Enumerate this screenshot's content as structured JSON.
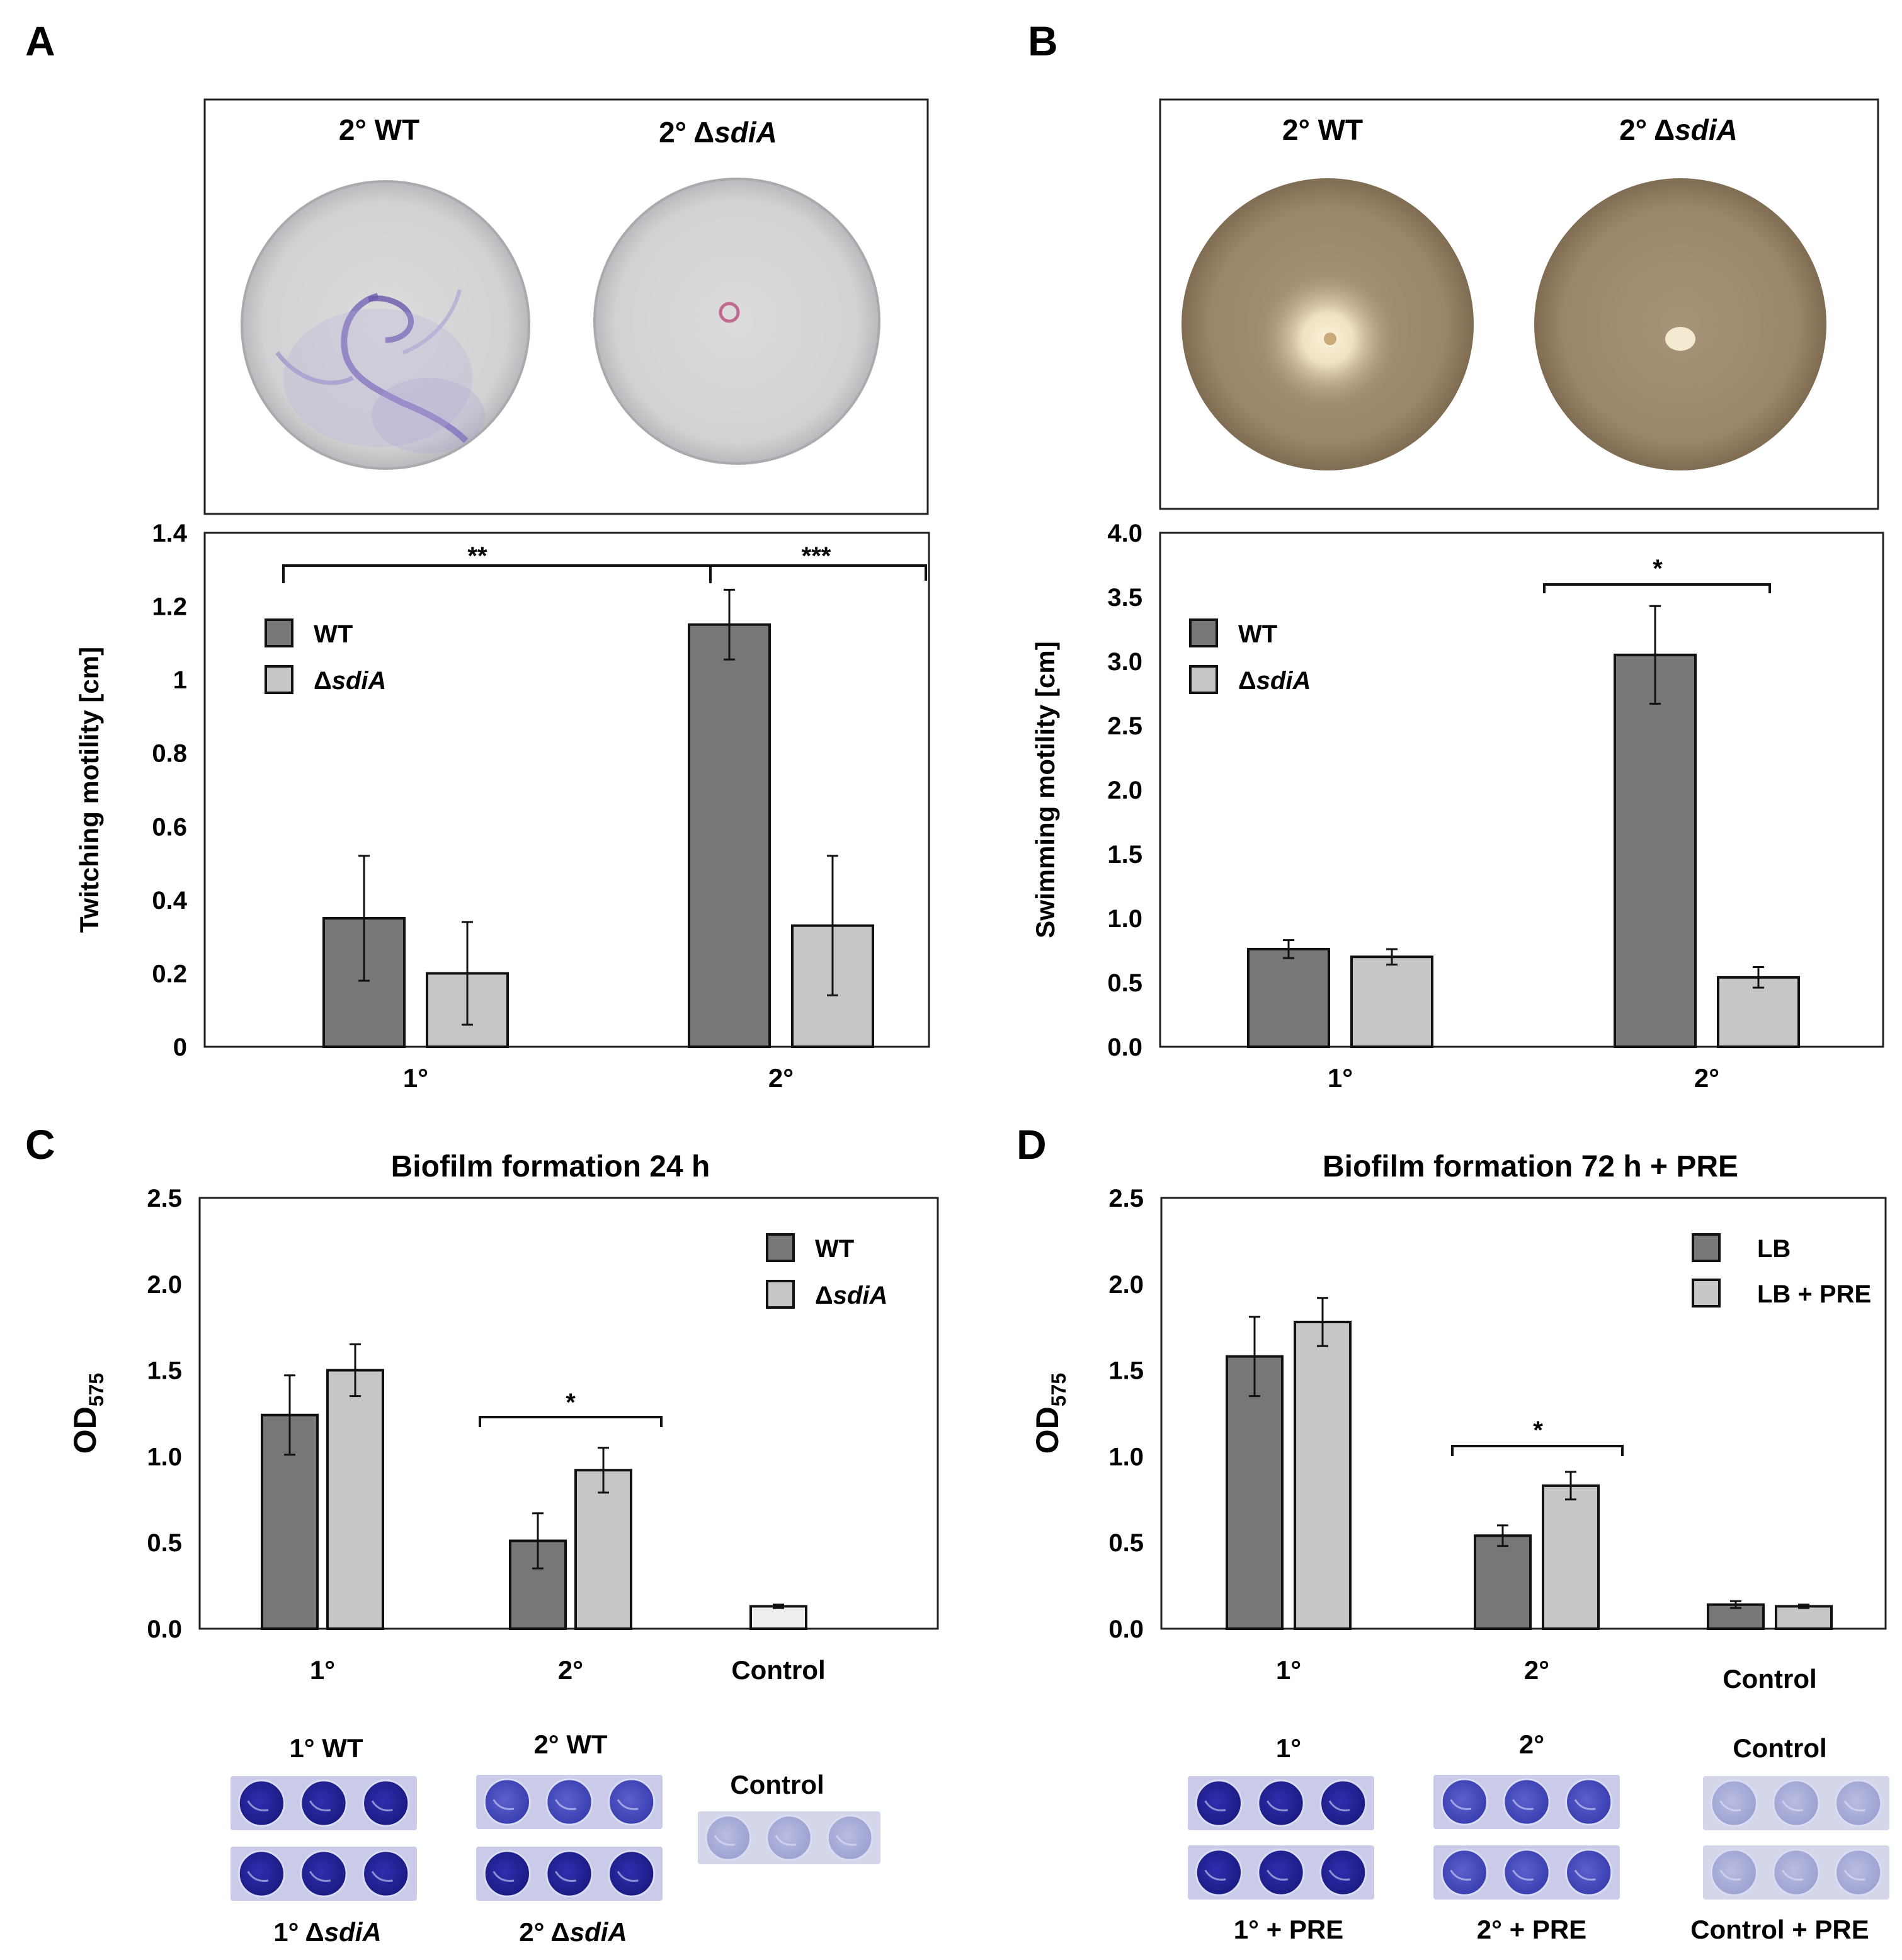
{
  "panel_letters": {
    "a": "A",
    "b": "B",
    "c": "C",
    "d": "D"
  },
  "photos": {
    "a": {
      "wt": "2° WT",
      "mut_prefix": "2° Δ",
      "mut_gene": "sdiA"
    },
    "b": {
      "wt": "2° WT",
      "mut_prefix": "2° Δ",
      "mut_gene": "sdiA"
    },
    "c": {
      "l1": "1° WT",
      "l2": "2° WT",
      "l3": "Control",
      "b1_prefix": "1° Δ",
      "b1_gene": "sdiA",
      "b2_prefix": "2° Δ",
      "b2_gene": "sdiA"
    },
    "d": {
      "l1": "1°",
      "l2": "2°",
      "l3": "Control",
      "b1": "1° + PRE",
      "b2": "2° + PRE",
      "b3": "Control + PRE"
    }
  },
  "colors": {
    "dark": "#777777",
    "light": "#c6c6c6",
    "control": "#eeeeee",
    "plate_a": "#d7d7d9",
    "plate_b": "#a28f75"
  },
  "chart_data": [
    {
      "panel": "A",
      "type": "bar",
      "title": "",
      "ylabel": "Twitching motility [cm]",
      "ylim": [
        0,
        1.4
      ],
      "yticks": [
        "0",
        "0.2",
        "0.4",
        "0.6",
        "0.8",
        "1",
        "1.2",
        "1.4"
      ],
      "categories": [
        "1°",
        "2°"
      ],
      "legend": [
        {
          "name": "WT",
          "italic": false
        },
        {
          "prefix": "Δ",
          "name": "sdiA",
          "italic": true
        }
      ],
      "series": [
        {
          "name": "WT",
          "values": [
            0.35,
            1.15
          ],
          "err": [
            0.17,
            0.095
          ],
          "color": "#777777"
        },
        {
          "name": "ΔsdiA",
          "values": [
            0.2,
            0.33
          ],
          "err": [
            0.14,
            0.19
          ],
          "color": "#c6c6c6"
        }
      ],
      "annotations": [
        {
          "label": "**",
          "from": "1° WT",
          "to": "2° WT",
          "level": 1.4
        },
        {
          "label": "***",
          "from": "2° WT",
          "to": "2° ΔsdiA",
          "level": 1.4
        }
      ]
    },
    {
      "panel": "B",
      "type": "bar",
      "title": "",
      "ylabel": "Swimming motility [cm]",
      "ylim": [
        0,
        4.0
      ],
      "yticks": [
        "0.0",
        "0.5",
        "1.0",
        "1.5",
        "2.0",
        "2.5",
        "3.0",
        "3.5",
        "4.0"
      ],
      "categories": [
        "1°",
        "2°"
      ],
      "legend": [
        {
          "name": "WT",
          "italic": false
        },
        {
          "prefix": "Δ",
          "name": "sdiA",
          "italic": true
        }
      ],
      "series": [
        {
          "name": "WT",
          "values": [
            0.76,
            3.05
          ],
          "err": [
            0.07,
            0.38
          ],
          "color": "#777777"
        },
        {
          "name": "ΔsdiA",
          "values": [
            0.7,
            0.54
          ],
          "err": [
            0.06,
            0.08
          ],
          "color": "#c6c6c6"
        }
      ],
      "annotations": [
        {
          "label": "*",
          "from": "2° WT",
          "to": "2° ΔsdiA",
          "level": 3.6
        }
      ]
    },
    {
      "panel": "C",
      "type": "bar",
      "title": "Biofilm formation 24 h",
      "ylabel_main": "OD",
      "ylabel_sub": "575",
      "ylim": [
        0,
        2.5
      ],
      "yticks": [
        "0.0",
        "0.5",
        "1.0",
        "1.5",
        "2.0",
        "2.5"
      ],
      "categories": [
        "1°",
        "2°",
        "Control"
      ],
      "legend": [
        {
          "name": "WT",
          "italic": false
        },
        {
          "prefix": "Δ",
          "name": "sdiA",
          "italic": true
        }
      ],
      "series": [
        {
          "name": "WT",
          "values": [
            1.24,
            0.51,
            null
          ],
          "err": [
            0.23,
            0.16,
            null
          ],
          "color": "#777777"
        },
        {
          "name": "ΔsdiA",
          "values": [
            1.5,
            0.92,
            null
          ],
          "err": [
            0.15,
            0.13,
            null
          ],
          "color": "#c6c6c6"
        },
        {
          "name": "Control",
          "values": [
            null,
            null,
            0.13
          ],
          "err": [
            null,
            null,
            0.01
          ],
          "color": "#eeeeee"
        }
      ],
      "annotations": [
        {
          "label": "*",
          "from": "2° WT",
          "to": "2° ΔsdiA",
          "level": 1.22
        }
      ]
    },
    {
      "panel": "D",
      "type": "bar",
      "title": "Biofilm formation 72 h + PRE",
      "ylabel_main": "OD",
      "ylabel_sub": "575",
      "ylim": [
        0,
        2.5
      ],
      "yticks": [
        "0.0",
        "0.5",
        "1.0",
        "1.5",
        "2.0",
        "2.5"
      ],
      "categories": [
        "1°",
        "2°",
        "Control"
      ],
      "legend": [
        {
          "name": "LB",
          "italic": false
        },
        {
          "name": "LB + PRE",
          "italic": false
        }
      ],
      "series": [
        {
          "name": "LB",
          "values": [
            1.58,
            0.54,
            0.14
          ],
          "err": [
            0.23,
            0.06,
            0.02
          ],
          "color": "#777777"
        },
        {
          "name": "LB + PRE",
          "values": [
            1.78,
            0.83,
            0.13
          ],
          "err": [
            0.14,
            0.08,
            0.01
          ],
          "color": "#c6c6c6"
        }
      ],
      "annotations": [
        {
          "label": "*",
          "from": "2° LB",
          "to": "2° LB + PRE",
          "level": 1.07
        }
      ]
    }
  ]
}
